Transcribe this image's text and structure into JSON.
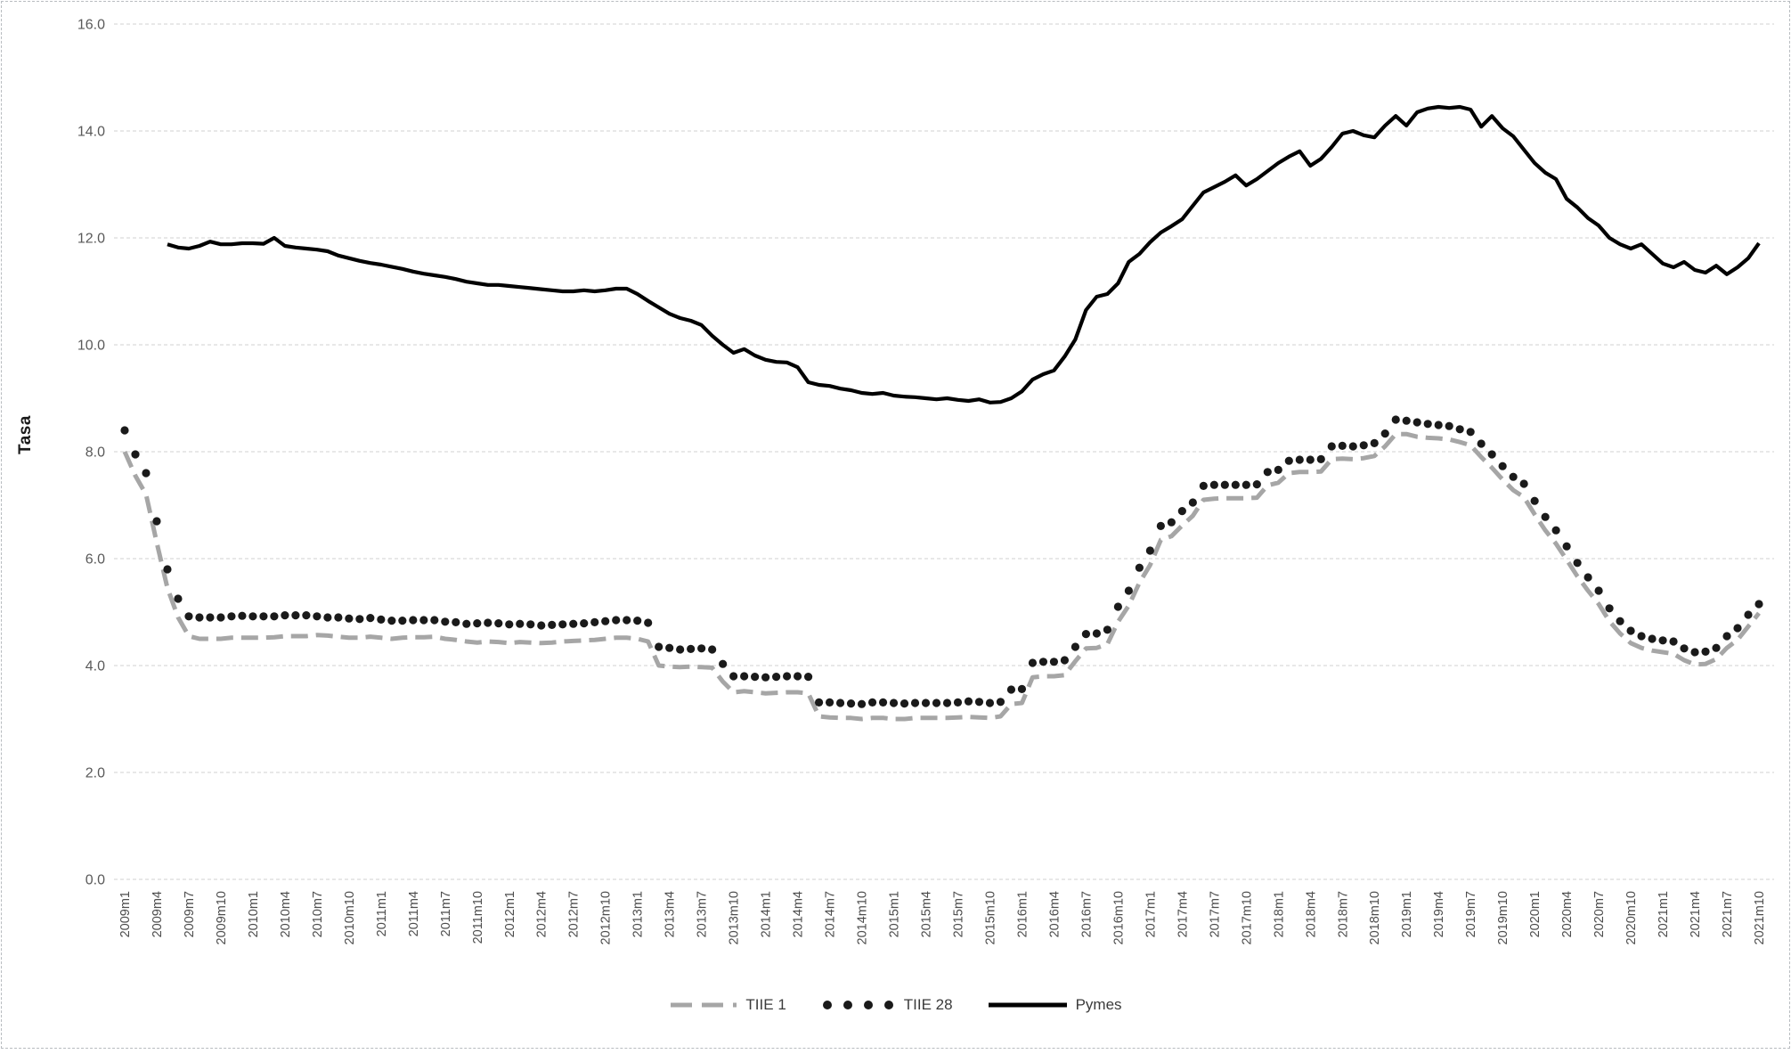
{
  "figure": {
    "background": "#ffffff",
    "frame_color": "#b8bcc0"
  },
  "chart_data": {
    "type": "line",
    "title": "",
    "xlabel": "",
    "ylabel": "Tasa",
    "ylim": [
      0,
      16
    ],
    "ytick_step": 2,
    "grid": "horizontal-dashed",
    "grid_color": "#d9d9d9",
    "legend_position": "bottom-center",
    "x_start": "2009m1",
    "x_end": "2021m10",
    "x_frequency": "monthly",
    "y_tick_labels": [
      "0.0",
      "2.0",
      "4.0",
      "6.0",
      "8.0",
      "10.0",
      "12.0",
      "14.0",
      "16.0"
    ],
    "tick_every": 3,
    "x_tick_labels": [
      "2009m1",
      "2009m4",
      "2009m7",
      "2009m10",
      "2010m1",
      "2010m4",
      "2010m7",
      "2010m10",
      "2011m1",
      "2011m4",
      "2011m7",
      "2011m10",
      "2012m1",
      "2012m4",
      "2012m7",
      "2012m10",
      "2013m1",
      "2013m4",
      "2013m7",
      "2013m10",
      "2014m1",
      "2014m4",
      "2014m7",
      "2014m10",
      "2015m1",
      "2015m4",
      "2015m7",
      "2015m10",
      "2016m1",
      "2016m4",
      "2016m7",
      "2016m10",
      "2017m1",
      "2017m4",
      "2017m7",
      "2017m10",
      "2018m1",
      "2018m4",
      "2018m7",
      "2018m10",
      "2019m1",
      "2019m4",
      "2019m7",
      "2019m10",
      "2020m1",
      "2020m4",
      "2020m7",
      "2020m10",
      "2021m1",
      "2021m4",
      "2021m7",
      "2021m10"
    ],
    "series": [
      {
        "name": "TIIE 1",
        "style": "dashed",
        "color": "#a6a6a6",
        "values": [
          8.0,
          7.55,
          7.2,
          6.3,
          5.45,
          4.9,
          4.55,
          4.5,
          4.5,
          4.5,
          4.52,
          4.52,
          4.52,
          4.52,
          4.53,
          4.55,
          4.55,
          4.55,
          4.57,
          4.56,
          4.54,
          4.52,
          4.52,
          4.54,
          4.52,
          4.5,
          4.52,
          4.53,
          4.53,
          4.54,
          4.5,
          4.48,
          4.45,
          4.43,
          4.45,
          4.44,
          4.42,
          4.44,
          4.43,
          4.42,
          4.43,
          4.45,
          4.46,
          4.47,
          4.48,
          4.5,
          4.52,
          4.52,
          4.5,
          4.45,
          4.0,
          3.98,
          3.97,
          3.98,
          3.97,
          3.96,
          3.7,
          3.5,
          3.52,
          3.5,
          3.48,
          3.49,
          3.5,
          3.5,
          3.48,
          3.05,
          3.03,
          3.02,
          3.02,
          3.0,
          3.02,
          3.02,
          3.0,
          3.0,
          3.02,
          3.02,
          3.02,
          3.02,
          3.03,
          3.04,
          3.03,
          3.02,
          3.05,
          3.28,
          3.3,
          3.78,
          3.8,
          3.8,
          3.82,
          4.08,
          4.32,
          4.33,
          4.4,
          4.82,
          5.12,
          5.55,
          5.88,
          6.35,
          6.42,
          6.62,
          6.8,
          7.1,
          7.12,
          7.13,
          7.13,
          7.13,
          7.14,
          7.37,
          7.42,
          7.6,
          7.62,
          7.62,
          7.63,
          7.86,
          7.87,
          7.86,
          7.88,
          7.92,
          8.1,
          8.33,
          8.33,
          8.28,
          8.26,
          8.25,
          8.23,
          8.18,
          8.12,
          7.9,
          7.7,
          7.48,
          7.28,
          7.15,
          6.83,
          6.53,
          6.28,
          5.98,
          5.67,
          5.4,
          5.15,
          4.83,
          4.6,
          4.42,
          4.33,
          4.28,
          4.25,
          4.22,
          4.1,
          4.02,
          4.03,
          4.12,
          4.33,
          4.48,
          4.73,
          4.98
        ]
      },
      {
        "name": "TIIE 28",
        "style": "dotted",
        "color": "#1a1a1a",
        "values": [
          8.4,
          7.95,
          7.6,
          6.7,
          5.8,
          5.25,
          4.92,
          4.9,
          4.9,
          4.9,
          4.92,
          4.93,
          4.92,
          4.92,
          4.92,
          4.94,
          4.94,
          4.94,
          4.92,
          4.9,
          4.9,
          4.88,
          4.87,
          4.89,
          4.86,
          4.84,
          4.84,
          4.85,
          4.85,
          4.85,
          4.82,
          4.81,
          4.78,
          4.79,
          4.8,
          4.79,
          4.77,
          4.78,
          4.77,
          4.75,
          4.76,
          4.77,
          4.78,
          4.79,
          4.81,
          4.83,
          4.85,
          4.85,
          4.84,
          4.8,
          4.35,
          4.33,
          4.3,
          4.31,
          4.32,
          4.3,
          4.03,
          3.8,
          3.8,
          3.79,
          3.78,
          3.79,
          3.8,
          3.8,
          3.79,
          3.31,
          3.31,
          3.3,
          3.29,
          3.28,
          3.31,
          3.31,
          3.3,
          3.29,
          3.3,
          3.3,
          3.3,
          3.3,
          3.31,
          3.33,
          3.32,
          3.3,
          3.32,
          3.55,
          3.56,
          4.05,
          4.07,
          4.07,
          4.1,
          4.35,
          4.59,
          4.6,
          4.67,
          5.1,
          5.4,
          5.83,
          6.15,
          6.61,
          6.68,
          6.89,
          7.05,
          7.36,
          7.38,
          7.38,
          7.38,
          7.38,
          7.39,
          7.62,
          7.66,
          7.83,
          7.85,
          7.85,
          7.86,
          8.1,
          8.11,
          8.1,
          8.12,
          8.16,
          8.34,
          8.6,
          8.58,
          8.55,
          8.52,
          8.5,
          8.48,
          8.42,
          8.37,
          8.15,
          7.95,
          7.73,
          7.53,
          7.4,
          7.08,
          6.78,
          6.53,
          6.23,
          5.92,
          5.65,
          5.4,
          5.07,
          4.83,
          4.65,
          4.55,
          4.5,
          4.47,
          4.45,
          4.32,
          4.25,
          4.26,
          4.33,
          4.55,
          4.7,
          4.95,
          5.15
        ]
      },
      {
        "name": "Pymes",
        "style": "solid",
        "color": "#000000",
        "values": [
          null,
          null,
          null,
          null,
          11.88,
          11.82,
          11.8,
          11.85,
          11.93,
          11.88,
          11.88,
          11.9,
          11.9,
          11.89,
          12.0,
          11.85,
          11.82,
          11.8,
          11.78,
          11.75,
          11.67,
          11.62,
          11.57,
          11.53,
          11.5,
          11.46,
          11.42,
          11.37,
          11.33,
          11.3,
          11.27,
          11.23,
          11.18,
          11.15,
          11.12,
          11.12,
          11.1,
          11.08,
          11.06,
          11.04,
          11.02,
          11.0,
          11.0,
          11.02,
          11.0,
          11.02,
          11.05,
          11.05,
          10.95,
          10.82,
          10.7,
          10.58,
          10.5,
          10.45,
          10.37,
          10.17,
          10.0,
          9.85,
          9.92,
          9.8,
          9.72,
          9.68,
          9.67,
          9.58,
          9.3,
          9.25,
          9.23,
          9.18,
          9.15,
          9.1,
          9.08,
          9.1,
          9.05,
          9.03,
          9.02,
          9.0,
          8.98,
          9.0,
          8.97,
          8.95,
          8.98,
          8.92,
          8.93,
          9.0,
          9.13,
          9.35,
          9.45,
          9.52,
          9.78,
          10.1,
          10.65,
          10.9,
          10.95,
          11.15,
          11.55,
          11.7,
          11.92,
          12.1,
          12.22,
          12.35,
          12.6,
          12.85,
          12.95,
          13.05,
          13.17,
          12.98,
          13.1,
          13.25,
          13.4,
          13.52,
          13.62,
          13.35,
          13.48,
          13.7,
          13.95,
          14.0,
          13.92,
          13.88,
          14.1,
          14.28,
          14.1,
          14.35,
          14.42,
          14.45,
          14.43,
          14.45,
          14.4,
          14.08,
          14.28,
          14.05,
          13.9,
          13.65,
          13.4,
          13.22,
          13.1,
          12.73,
          12.57,
          12.37,
          12.23,
          12.0,
          11.88,
          11.8,
          11.88,
          11.7,
          11.52,
          11.45,
          11.55,
          11.4,
          11.35,
          11.48,
          11.32,
          11.45,
          11.62,
          11.9
        ]
      }
    ]
  },
  "legend": {
    "items": [
      {
        "label": "TIIE 1"
      },
      {
        "label": "TIIE 28"
      },
      {
        "label": "Pymes"
      }
    ]
  }
}
